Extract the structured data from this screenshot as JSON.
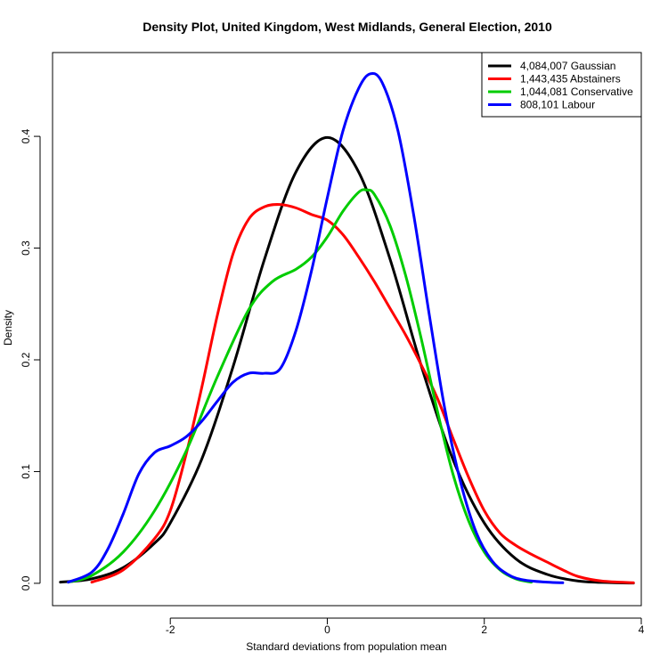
{
  "chart_data": {
    "type": "line",
    "title": "Density Plot, United Kingdom, West Midlands, General Election, 2010",
    "xlabel": "Standard deviations from population mean",
    "ylabel": "Density",
    "xlim": [
      -3.5,
      4.0
    ],
    "ylim": [
      -0.02,
      0.475
    ],
    "xticks": [
      -2,
      0,
      2,
      4
    ],
    "xtick_labels": [
      "-2",
      "0",
      "2",
      "4"
    ],
    "yticks": [
      0.0,
      0.1,
      0.2,
      0.3,
      0.4
    ],
    "ytick_labels": [
      "0.0",
      "0.1",
      "0.2",
      "0.3",
      "0.4"
    ],
    "grid": false,
    "legend_position": "top-right",
    "series": [
      {
        "name": "4,084,007 Gaussian",
        "color": "#000000",
        "points": [
          [
            -3.4,
            0.001
          ],
          [
            -3.0,
            0.004
          ],
          [
            -2.6,
            0.014
          ],
          [
            -2.2,
            0.036
          ],
          [
            -2.0,
            0.054
          ],
          [
            -1.6,
            0.111
          ],
          [
            -1.2,
            0.194
          ],
          [
            -0.8,
            0.29
          ],
          [
            -0.4,
            0.368
          ],
          [
            0.0,
            0.399
          ],
          [
            0.4,
            0.368
          ],
          [
            0.8,
            0.29
          ],
          [
            1.2,
            0.194
          ],
          [
            1.6,
            0.111
          ],
          [
            2.0,
            0.054
          ],
          [
            2.4,
            0.022
          ],
          [
            2.8,
            0.008
          ],
          [
            3.2,
            0.002
          ],
          [
            3.6,
            0.0006
          ],
          [
            3.9,
            0.0002
          ]
        ]
      },
      {
        "name": "1,443,435 Abstainers",
        "color": "#ff0000",
        "points": [
          [
            -3.0,
            0.001
          ],
          [
            -2.6,
            0.012
          ],
          [
            -2.2,
            0.04
          ],
          [
            -2.0,
            0.065
          ],
          [
            -1.8,
            0.115
          ],
          [
            -1.6,
            0.175
          ],
          [
            -1.4,
            0.24
          ],
          [
            -1.2,
            0.295
          ],
          [
            -1.0,
            0.326
          ],
          [
            -0.8,
            0.337
          ],
          [
            -0.6,
            0.339
          ],
          [
            -0.4,
            0.336
          ],
          [
            -0.2,
            0.33
          ],
          [
            0.0,
            0.325
          ],
          [
            0.2,
            0.312
          ],
          [
            0.4,
            0.292
          ],
          [
            0.6,
            0.27
          ],
          [
            0.8,
            0.246
          ],
          [
            1.0,
            0.222
          ],
          [
            1.2,
            0.195
          ],
          [
            1.4,
            0.166
          ],
          [
            1.6,
            0.13
          ],
          [
            1.8,
            0.095
          ],
          [
            2.0,
            0.065
          ],
          [
            2.2,
            0.045
          ],
          [
            2.4,
            0.034
          ],
          [
            2.6,
            0.026
          ],
          [
            2.8,
            0.019
          ],
          [
            3.0,
            0.012
          ],
          [
            3.2,
            0.006
          ],
          [
            3.5,
            0.002
          ],
          [
            3.9,
            0.0005
          ]
        ]
      },
      {
        "name": "1,044,081 Conservative",
        "color": "#00cc00",
        "points": [
          [
            -3.3,
            0.001
          ],
          [
            -3.0,
            0.007
          ],
          [
            -2.6,
            0.028
          ],
          [
            -2.2,
            0.065
          ],
          [
            -1.8,
            0.118
          ],
          [
            -1.4,
            0.185
          ],
          [
            -1.0,
            0.245
          ],
          [
            -0.7,
            0.27
          ],
          [
            -0.4,
            0.281
          ],
          [
            -0.2,
            0.292
          ],
          [
            0.0,
            0.31
          ],
          [
            0.2,
            0.333
          ],
          [
            0.4,
            0.35
          ],
          [
            0.5,
            0.352
          ],
          [
            0.6,
            0.348
          ],
          [
            0.8,
            0.32
          ],
          [
            1.0,
            0.275
          ],
          [
            1.2,
            0.218
          ],
          [
            1.4,
            0.155
          ],
          [
            1.6,
            0.098
          ],
          [
            1.8,
            0.056
          ],
          [
            2.0,
            0.028
          ],
          [
            2.2,
            0.012
          ],
          [
            2.4,
            0.004
          ],
          [
            2.6,
            0.001
          ]
        ]
      },
      {
        "name": "808,101 Labour",
        "color": "#0000ff",
        "points": [
          [
            -3.3,
            0.001
          ],
          [
            -3.0,
            0.01
          ],
          [
            -2.8,
            0.03
          ],
          [
            -2.6,
            0.062
          ],
          [
            -2.4,
            0.098
          ],
          [
            -2.2,
            0.117
          ],
          [
            -2.0,
            0.123
          ],
          [
            -1.8,
            0.131
          ],
          [
            -1.6,
            0.145
          ],
          [
            -1.4,
            0.163
          ],
          [
            -1.2,
            0.18
          ],
          [
            -1.0,
            0.188
          ],
          [
            -0.8,
            0.188
          ],
          [
            -0.6,
            0.192
          ],
          [
            -0.4,
            0.226
          ],
          [
            -0.2,
            0.28
          ],
          [
            0.0,
            0.345
          ],
          [
            0.2,
            0.405
          ],
          [
            0.4,
            0.443
          ],
          [
            0.55,
            0.456
          ],
          [
            0.7,
            0.448
          ],
          [
            0.9,
            0.405
          ],
          [
            1.1,
            0.33
          ],
          [
            1.3,
            0.24
          ],
          [
            1.5,
            0.155
          ],
          [
            1.7,
            0.09
          ],
          [
            1.9,
            0.045
          ],
          [
            2.1,
            0.02
          ],
          [
            2.3,
            0.008
          ],
          [
            2.5,
            0.003
          ],
          [
            2.8,
            0.001
          ],
          [
            3.0,
            0.0005
          ]
        ]
      }
    ]
  }
}
